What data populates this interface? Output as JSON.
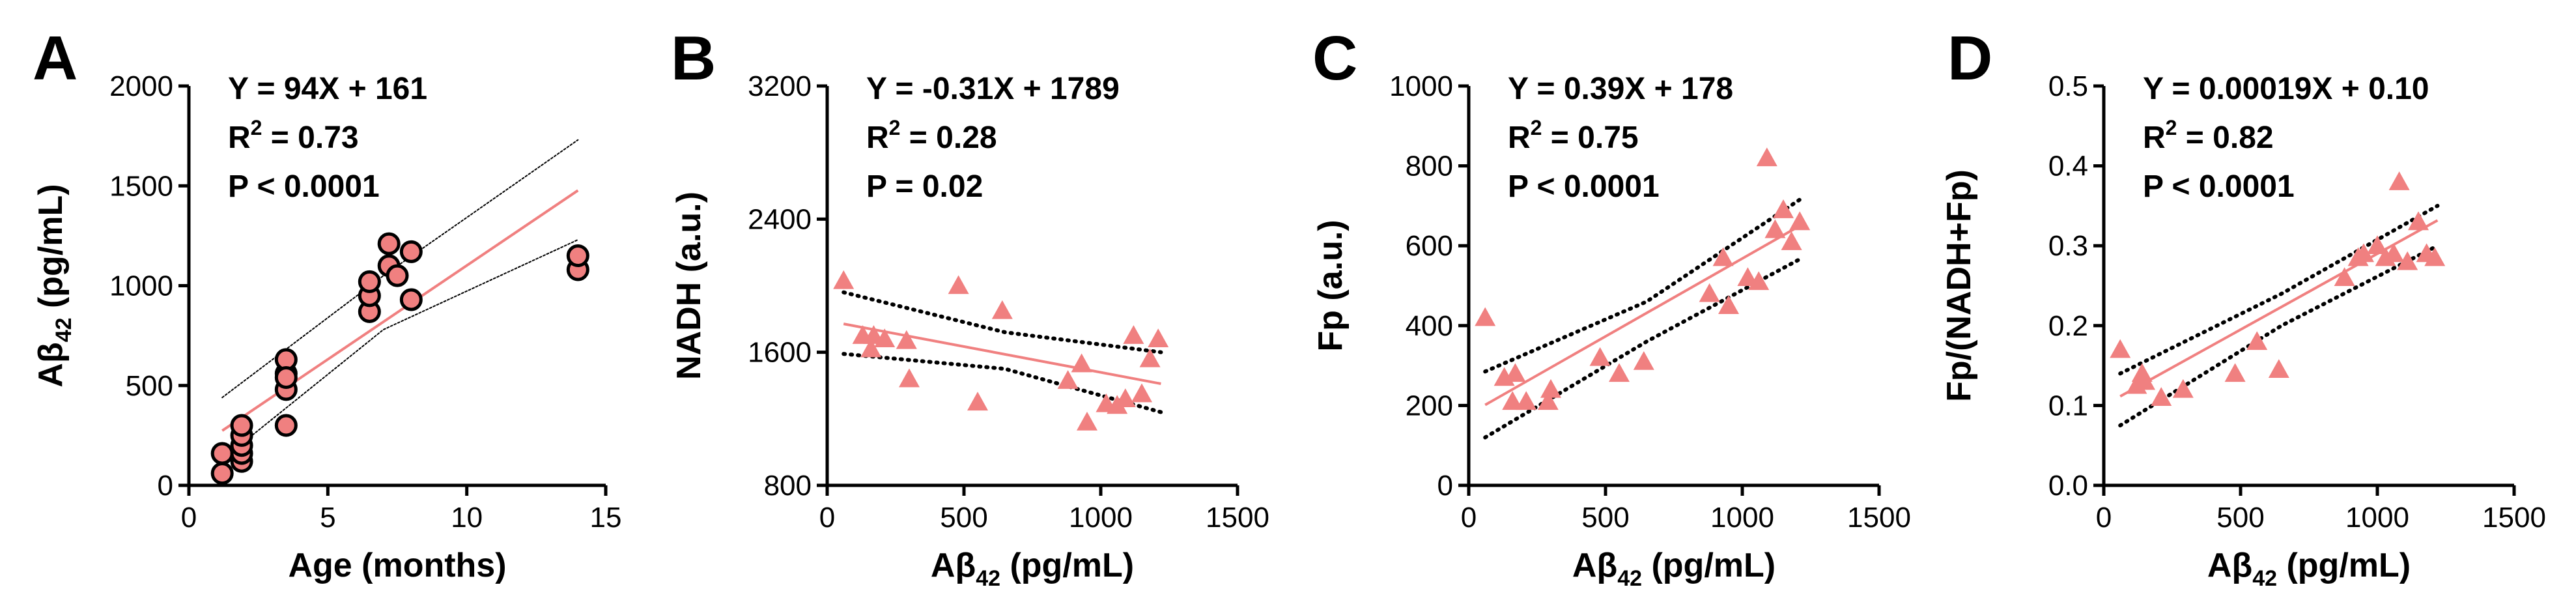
{
  "figure": {
    "colors": {
      "marker_fill": "#f08080",
      "marker_edge": "#000000",
      "fit_line": "#f08080",
      "ci_line": "#000000",
      "axis": "#000000"
    }
  },
  "chart_data": [
    {
      "panel": "A",
      "type": "scatter",
      "marker": "circle",
      "xlabel": "Age (months)",
      "ylabel": "Aβ42 (pg/mL)",
      "ylabel_main": "Aβ",
      "ylabel_sub": "42",
      "ylabel_tail": " (pg/mL)",
      "xlim": [
        0,
        15
      ],
      "ylim": [
        0,
        2000
      ],
      "xticks": [
        0,
        5,
        10,
        15
      ],
      "yticks": [
        0,
        500,
        1000,
        1500,
        2000
      ],
      "stats": {
        "equation": "Y = 94X + 161",
        "r2_label": "R",
        "r2_exp": "2",
        "r2_value": " = 0.73",
        "p": "P < 0.0001"
      },
      "fit": {
        "slope": 94,
        "intercept": 161,
        "x_range": [
          1.2,
          14
        ]
      },
      "ci": {
        "lower": [
          [
            1.2,
            130
          ],
          [
            7,
            780
          ],
          [
            14,
            1230
          ]
        ],
        "upper": [
          [
            1.2,
            440
          ],
          [
            7,
            1050
          ],
          [
            14,
            1730
          ]
        ]
      },
      "x": [
        1.2,
        1.2,
        1.9,
        1.9,
        1.9,
        1.9,
        1.9,
        3.5,
        3.5,
        3.5,
        3.5,
        3.5,
        6.5,
        6.5,
        6.5,
        7.2,
        7.2,
        7.5,
        8,
        8,
        14,
        14
      ],
      "y": [
        60,
        160,
        120,
        160,
        200,
        250,
        300,
        300,
        480,
        560,
        630,
        540,
        870,
        950,
        1020,
        1100,
        1210,
        1050,
        1170,
        930,
        1080,
        1150
      ]
    },
    {
      "panel": "B",
      "type": "scatter",
      "marker": "triangle",
      "xlabel": "Aβ42 (pg/mL)",
      "xlabel_main": "Aβ",
      "xlabel_sub": "42",
      "xlabel_tail": " (pg/mL)",
      "ylabel": "NADH (a.u.)",
      "xlim": [
        0,
        1500
      ],
      "ylim": [
        800,
        3200
      ],
      "xticks": [
        0,
        500,
        1000,
        1500
      ],
      "yticks": [
        800,
        1600,
        2400,
        3200
      ],
      "stats": {
        "equation": "Y = -0.31X + 1789",
        "r2_label": "R",
        "r2_exp": "2",
        "r2_value": " = 0.28",
        "p": "P = 0.02"
      },
      "fit": {
        "slope": -0.31,
        "intercept": 1789,
        "x_range": [
          60,
          1220
        ]
      },
      "ci": {
        "lower": [
          [
            60,
            1590
          ],
          [
            650,
            1500
          ],
          [
            1220,
            1240
          ]
        ],
        "upper": [
          [
            60,
            1960
          ],
          [
            650,
            1720
          ],
          [
            1220,
            1600
          ]
        ]
      },
      "x": [
        60,
        130,
        160,
        170,
        210,
        290,
        300,
        480,
        550,
        640,
        880,
        930,
        950,
        1020,
        1060,
        1090,
        1120,
        1150,
        1180,
        1210
      ],
      "y": [
        2030,
        1700,
        1620,
        1700,
        1680,
        1670,
        1440,
        2000,
        1300,
        1850,
        1430,
        1530,
        1180,
        1290,
        1280,
        1320,
        1700,
        1350,
        1560,
        1680
      ]
    },
    {
      "panel": "C",
      "type": "scatter",
      "marker": "triangle",
      "xlabel": "Aβ42 (pg/mL)",
      "xlabel_main": "Aβ",
      "xlabel_sub": "42",
      "xlabel_tail": " (pg/mL)",
      "ylabel": "Fp (a.u.)",
      "xlim": [
        0,
        1500
      ],
      "ylim": [
        0,
        1000
      ],
      "xticks": [
        0,
        500,
        1000,
        1500
      ],
      "yticks": [
        0,
        200,
        400,
        600,
        800,
        1000
      ],
      "stats": {
        "equation": "Y = 0.39X + 178",
        "r2_label": "R",
        "r2_exp": "2",
        "r2_value": " = 0.75",
        "p": "P < 0.0001"
      },
      "fit": {
        "slope": 0.39,
        "intercept": 178,
        "x_range": [
          60,
          1220
        ]
      },
      "ci": {
        "lower": [
          [
            60,
            120
          ],
          [
            650,
            360
          ],
          [
            1220,
            570
          ]
        ],
        "upper": [
          [
            60,
            285
          ],
          [
            650,
            460
          ],
          [
            1220,
            720
          ]
        ]
      },
      "x": [
        60,
        130,
        160,
        170,
        210,
        290,
        300,
        480,
        550,
        640,
        880,
        930,
        950,
        1020,
        1060,
        1090,
        1120,
        1150,
        1180,
        1210
      ],
      "y": [
        420,
        270,
        210,
        280,
        210,
        210,
        240,
        320,
        280,
        310,
        480,
        570,
        450,
        520,
        510,
        820,
        640,
        690,
        610,
        660
      ]
    },
    {
      "panel": "D",
      "type": "scatter",
      "marker": "triangle",
      "xlabel": "Aβ42 (pg/mL)",
      "xlabel_main": "Aβ",
      "xlabel_sub": "42",
      "xlabel_tail": " (pg/mL)",
      "ylabel": "Fp/(NADH+Fp)",
      "xlim": [
        0,
        1500
      ],
      "ylim": [
        0,
        0.5
      ],
      "xticks": [
        0,
        500,
        1000,
        1500
      ],
      "yticks": [
        0,
        0.1,
        0.2,
        0.3,
        0.4,
        0.5
      ],
      "ytick_labels": [
        "0.0",
        "0.1",
        "0.2",
        "0.3",
        "0.4",
        "0.5"
      ],
      "stats": {
        "equation": "Y = 0.00019X + 0.10",
        "r2_label": "R",
        "r2_exp": "2",
        "r2_value": " = 0.82",
        "p": "P < 0.0001"
      },
      "fit": {
        "slope": 0.00019,
        "intercept": 0.1,
        "x_range": [
          60,
          1220
        ]
      },
      "ci": {
        "lower": [
          [
            60,
            0.075
          ],
          [
            650,
            0.2
          ],
          [
            1220,
            0.3
          ]
        ],
        "upper": [
          [
            60,
            0.14
          ],
          [
            650,
            0.24
          ],
          [
            1220,
            0.35
          ]
        ]
      },
      "x": [
        60,
        120,
        140,
        150,
        210,
        290,
        480,
        560,
        640,
        880,
        930,
        950,
        1000,
        1030,
        1060,
        1080,
        1110,
        1150,
        1180,
        1210
      ],
      "y": [
        0.17,
        0.125,
        0.14,
        0.13,
        0.11,
        0.12,
        0.14,
        0.18,
        0.145,
        0.26,
        0.285,
        0.29,
        0.3,
        0.285,
        0.29,
        0.38,
        0.28,
        0.33,
        0.29,
        0.285
      ]
    }
  ]
}
